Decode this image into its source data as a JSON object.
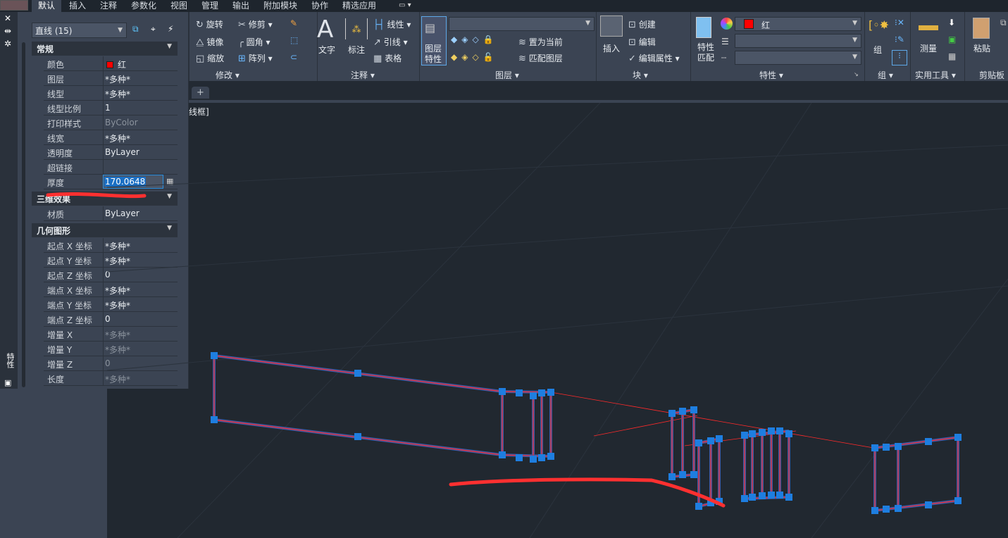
{
  "tabs": [
    "默认",
    "插入",
    "注释",
    "参数化",
    "视图",
    "管理",
    "输出",
    "附加模块",
    "协作",
    "精选应用"
  ],
  "active_tab": "默认",
  "palette": {
    "side_label": "特性",
    "object_selector": "直线 (15)",
    "sections": [
      {
        "title": "常规",
        "rows": [
          {
            "label": "颜色",
            "value": "红",
            "swatch": "#ff0000"
          },
          {
            "label": "图层",
            "value": "*多种*"
          },
          {
            "label": "线型",
            "value": "*多种*"
          },
          {
            "label": "线型比例",
            "value": "1"
          },
          {
            "label": "打印样式",
            "value": "ByColor",
            "dim": true
          },
          {
            "label": "线宽",
            "value": "*多种*"
          },
          {
            "label": "透明度",
            "value": "ByLayer"
          },
          {
            "label": "超链接",
            "value": ""
          },
          {
            "label": "厚度",
            "value": "170.0648",
            "editing": true
          }
        ]
      },
      {
        "title": "三维效果",
        "rows": [
          {
            "label": "材质",
            "value": "ByLayer"
          }
        ]
      },
      {
        "title": "几何图形",
        "rows": [
          {
            "label": "起点 X 坐标",
            "value": "*多种*"
          },
          {
            "label": "起点 Y 坐标",
            "value": "*多种*"
          },
          {
            "label": "起点 Z 坐标",
            "value": "0"
          },
          {
            "label": "端点 X 坐标",
            "value": "*多种*"
          },
          {
            "label": "端点 Y 坐标",
            "value": "*多种*"
          },
          {
            "label": "端点 Z 坐标",
            "value": "0"
          },
          {
            "label": "增量 X",
            "value": "*多种*",
            "dim": true
          },
          {
            "label": "增量 Y",
            "value": "*多种*",
            "dim": true
          },
          {
            "label": "增量 Z",
            "value": "0",
            "dim": true
          },
          {
            "label": "长度",
            "value": "*多种*",
            "dim": true
          }
        ]
      }
    ]
  },
  "ribbon": {
    "modify": {
      "title": "修改",
      "items": [
        "旋转",
        "修剪",
        "镜像",
        "圆角",
        "缩放",
        "阵列"
      ]
    },
    "annotate": {
      "title": "注释",
      "text": "文字",
      "dim": "标注",
      "items": [
        "线性",
        "引线",
        "表格"
      ]
    },
    "layers": {
      "title": "图层",
      "props": "图层\n特性",
      "set_current": "置为当前",
      "match": "匹配图层"
    },
    "block": {
      "title": "块",
      "insert": "插入",
      "items": [
        "创建",
        "编辑",
        "编辑属性"
      ]
    },
    "properties": {
      "title": "特性",
      "match": "特性\n匹配",
      "color": "红",
      "color_hex": "#ff0000"
    },
    "group": {
      "title": "组",
      "label": "组"
    },
    "utilities": {
      "title": "实用工具",
      "measure": "测量"
    },
    "clipboard": {
      "title": "剪贴板",
      "paste": "粘贴"
    }
  },
  "viewport": {
    "label": "线框]"
  },
  "colors": {
    "accent": "#2a8fe0",
    "grip": "#1e7ee0",
    "entity": "#ff2a2a",
    "annotation": "#ff3030"
  }
}
